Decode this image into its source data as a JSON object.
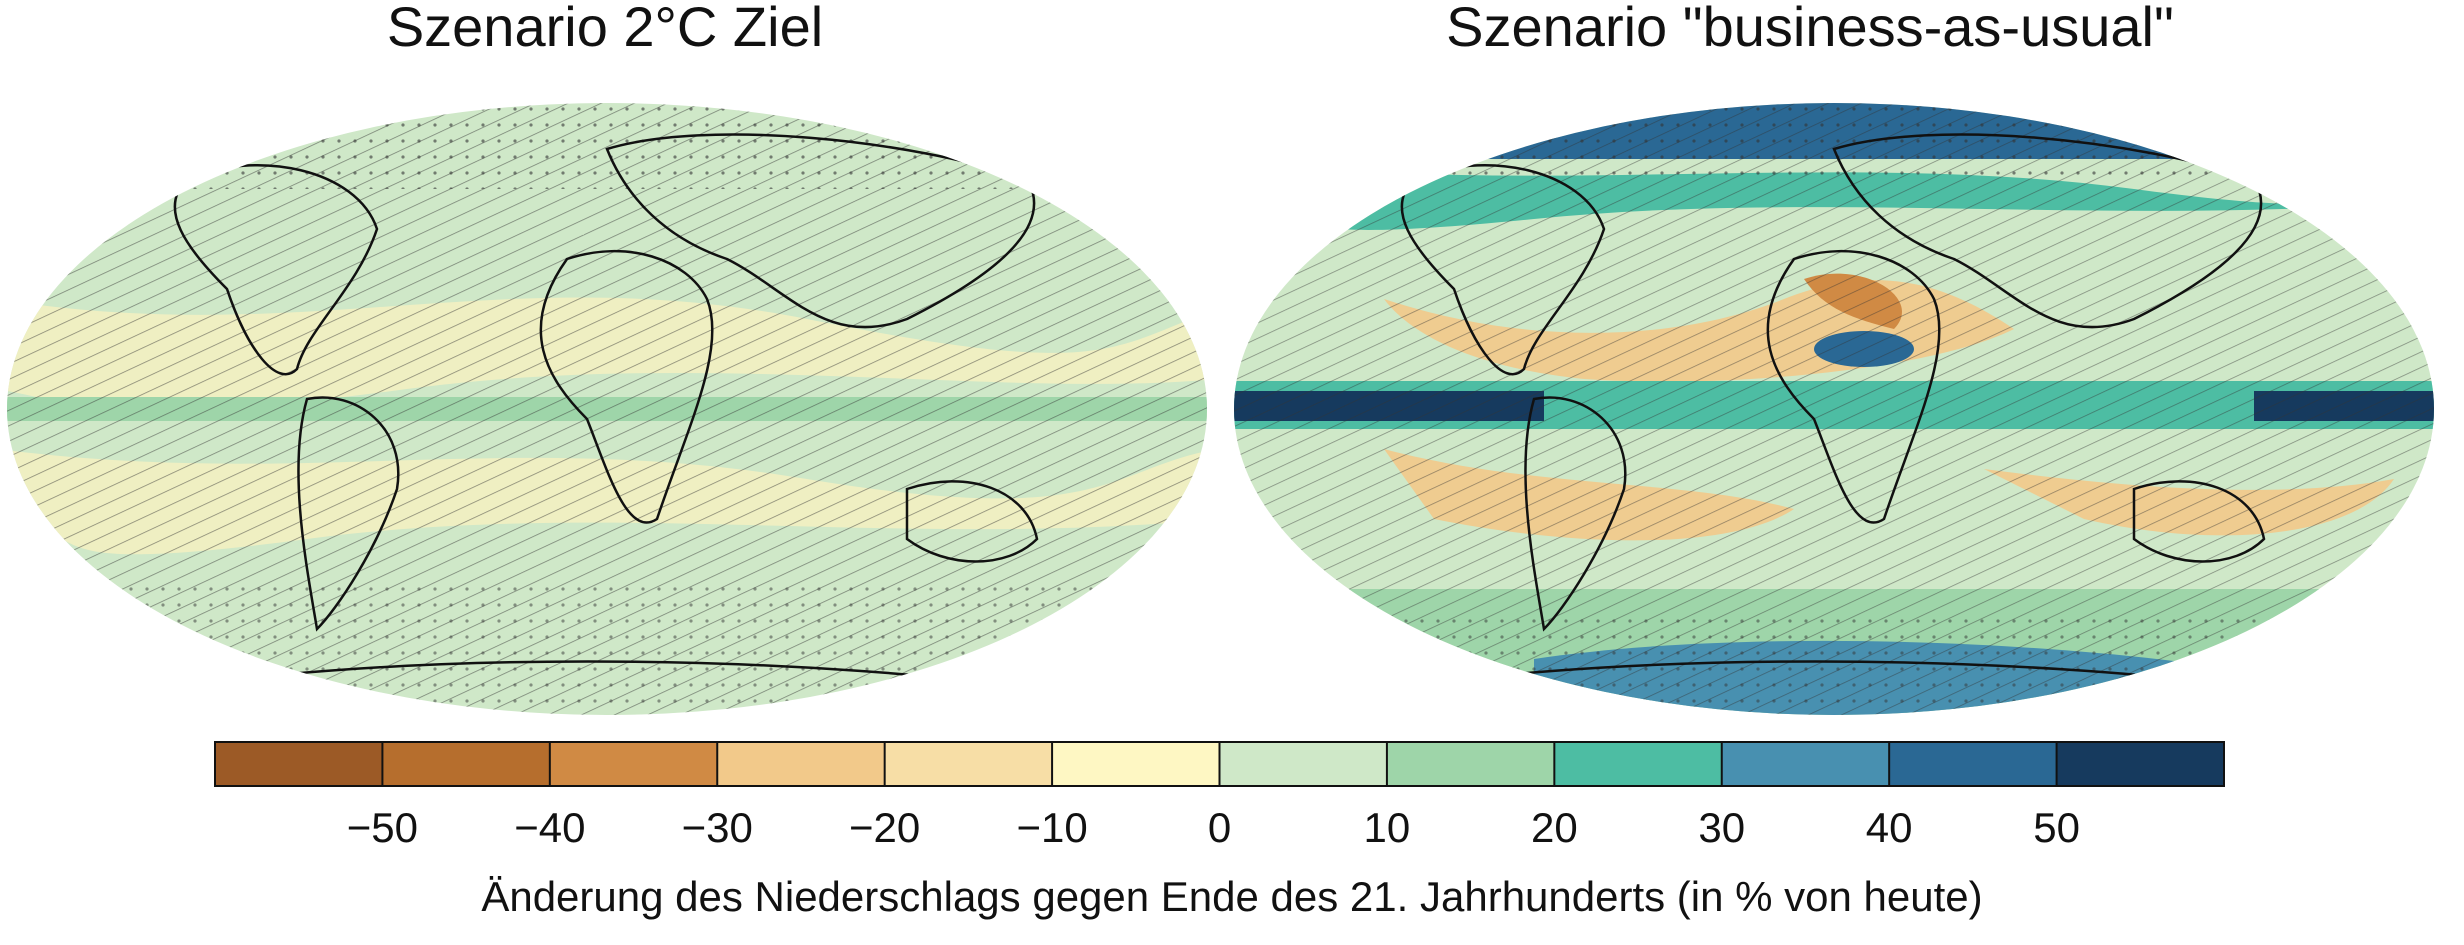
{
  "maps": [
    {
      "title": "Szenario 2°C Ziel"
    },
    {
      "title": "Szenario \"business-as-usual\""
    }
  ],
  "colorbar": {
    "label": "Änderung des Niederschlags gegen Ende des 21. Jahrhunderts (in % von heute)",
    "xlim": [
      -60,
      60
    ],
    "bins": [
      -60,
      -50,
      -40,
      -30,
      -20,
      -10,
      0,
      10,
      20,
      30,
      40,
      50,
      60
    ],
    "colors": [
      "#9c5a26",
      "#b66e2d",
      "#d08a44",
      "#f2c98a",
      "#f7dea6",
      "#fef7c3",
      "#cfe8c8",
      "#9ed5a9",
      "#4dbda3",
      "#4890b0",
      "#2a6894",
      "#163a5e"
    ],
    "xticks": [
      {
        "value": -50,
        "label": "−50"
      },
      {
        "value": -40,
        "label": "−40"
      },
      {
        "value": -30,
        "label": "−30"
      },
      {
        "value": -20,
        "label": "−20"
      },
      {
        "value": -10,
        "label": "−10"
      },
      0,
      10,
      20,
      30,
      40,
      50
    ]
  }
}
